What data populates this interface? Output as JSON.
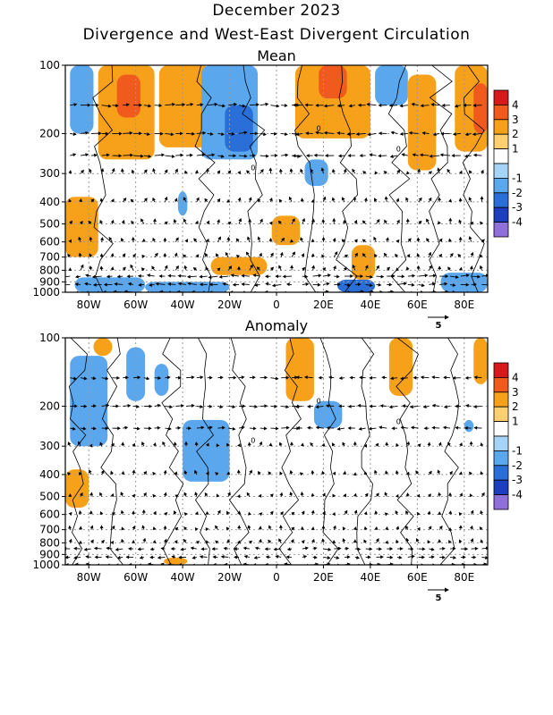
{
  "figure": {
    "title": "December 2023",
    "subtitle": "Divergence and West-East Divergent Circulation"
  },
  "chart_data": [
    {
      "type": "heatmap",
      "title": "Mean",
      "x_ticks": [
        "80W",
        "60W",
        "40W",
        "20W",
        "0",
        "20E",
        "40E",
        "60E",
        "80E"
      ],
      "x_tick_values": [
        -80,
        -60,
        -40,
        -20,
        0,
        20,
        40,
        60,
        80
      ],
      "xlim": [
        -90,
        90
      ],
      "y_ticks": [
        "100",
        "200",
        "300",
        "400",
        "500",
        "600",
        "700",
        "800",
        "900",
        "1000"
      ],
      "y_tick_values": [
        100,
        200,
        300,
        400,
        500,
        600,
        700,
        800,
        900,
        1000
      ],
      "ylim": [
        1000,
        100
      ],
      "y_scale": "log-pressure",
      "grid": true,
      "contour_label": "0",
      "vector_reference": "5",
      "colorbar": {
        "labels": [
          "4",
          "3",
          "2",
          "1",
          "-1",
          "-2",
          "-3",
          "-4"
        ],
        "colors": [
          "#d7191c",
          "#f15a1d",
          "#f7a11a",
          "#fcd070",
          "#ffffff",
          "#a6d4f7",
          "#5aa7ee",
          "#2a6fd8",
          "#1c3fbf",
          "#8f6fd9"
        ]
      },
      "anomaly_regions": [
        {
          "x0": -88,
          "x1": -78,
          "p0": 100,
          "p1": 200,
          "value": -2
        },
        {
          "x0": -76,
          "x1": -52,
          "p0": 100,
          "p1": 260,
          "value": 2
        },
        {
          "x0": -68,
          "x1": -58,
          "p0": 110,
          "p1": 170,
          "value": 3
        },
        {
          "x0": -50,
          "x1": -28,
          "p0": 100,
          "p1": 230,
          "value": 2
        },
        {
          "x0": -32,
          "x1": -8,
          "p0": 100,
          "p1": 260,
          "value": -2
        },
        {
          "x0": -22,
          "x1": -10,
          "p0": 150,
          "p1": 240,
          "value": -3
        },
        {
          "x0": 8,
          "x1": 40,
          "p0": 100,
          "p1": 210,
          "value": 2
        },
        {
          "x0": 18,
          "x1": 30,
          "p0": 100,
          "p1": 140,
          "value": 3
        },
        {
          "x0": 42,
          "x1": 56,
          "p0": 100,
          "p1": 150,
          "value": -2
        },
        {
          "x0": 56,
          "x1": 68,
          "p0": 110,
          "p1": 290,
          "value": 2
        },
        {
          "x0": 76,
          "x1": 90,
          "p0": 100,
          "p1": 240,
          "value": 2
        },
        {
          "x0": 84,
          "x1": 90,
          "p0": 120,
          "p1": 200,
          "value": 3
        },
        {
          "x0": 12,
          "x1": 22,
          "p0": 260,
          "p1": 340,
          "value": -2
        },
        {
          "x0": -42,
          "x1": -38,
          "p0": 360,
          "p1": 460,
          "value": -2
        },
        {
          "x0": -90,
          "x1": -76,
          "p0": 380,
          "p1": 700,
          "value": 2
        },
        {
          "x0": -2,
          "x1": 10,
          "p0": 460,
          "p1": 620,
          "value": 2
        },
        {
          "x0": 32,
          "x1": 42,
          "p0": 620,
          "p1": 880,
          "value": 2
        },
        {
          "x0": -28,
          "x1": -4,
          "p0": 700,
          "p1": 840,
          "value": 2
        },
        {
          "x0": -86,
          "x1": -56,
          "p0": 860,
          "p1": 1000,
          "value": -2
        },
        {
          "x0": -56,
          "x1": -20,
          "p0": 900,
          "p1": 1000,
          "value": -2
        },
        {
          "x0": 26,
          "x1": 42,
          "p0": 880,
          "p1": 1000,
          "value": -3
        },
        {
          "x0": 70,
          "x1": 90,
          "p0": 820,
          "p1": 1000,
          "value": -2
        }
      ]
    },
    {
      "type": "heatmap",
      "title": "Anomaly",
      "x_ticks": [
        "80W",
        "60W",
        "40W",
        "20W",
        "0",
        "20E",
        "40E",
        "60E",
        "80E"
      ],
      "x_tick_values": [
        -80,
        -60,
        -40,
        -20,
        0,
        20,
        40,
        60,
        80
      ],
      "xlim": [
        -90,
        90
      ],
      "y_ticks": [
        "100",
        "200",
        "300",
        "400",
        "500",
        "600",
        "700",
        "800",
        "900",
        "1000"
      ],
      "y_tick_values": [
        100,
        200,
        300,
        400,
        500,
        600,
        700,
        800,
        900,
        1000
      ],
      "ylim": [
        1000,
        100
      ],
      "y_scale": "log-pressure",
      "grid": true,
      "contour_label": "0",
      "vector_reference": "5",
      "colorbar": {
        "labels": [
          "4",
          "3",
          "2",
          "1",
          "-1",
          "-2",
          "-3",
          "-4"
        ],
        "colors": [
          "#d7191c",
          "#f15a1d",
          "#f7a11a",
          "#fcd070",
          "#ffffff",
          "#a6d4f7",
          "#5aa7ee",
          "#2a6fd8",
          "#1c3fbf",
          "#8f6fd9"
        ]
      },
      "anomaly_regions": [
        {
          "x0": -78,
          "x1": -70,
          "p0": 100,
          "p1": 120,
          "value": 2
        },
        {
          "x0": -88,
          "x1": -72,
          "p0": 120,
          "p1": 300,
          "value": -2
        },
        {
          "x0": -64,
          "x1": -56,
          "p0": 110,
          "p1": 190,
          "value": -2
        },
        {
          "x0": -52,
          "x1": -46,
          "p0": 130,
          "p1": 180,
          "value": -2
        },
        {
          "x0": 4,
          "x1": 16,
          "p0": 100,
          "p1": 190,
          "value": 2
        },
        {
          "x0": 48,
          "x1": 58,
          "p0": 100,
          "p1": 180,
          "value": 2
        },
        {
          "x0": 84,
          "x1": 90,
          "p0": 100,
          "p1": 160,
          "value": 2
        },
        {
          "x0": -40,
          "x1": -20,
          "p0": 230,
          "p1": 430,
          "value": -2
        },
        {
          "x0": 16,
          "x1": 28,
          "p0": 190,
          "p1": 250,
          "value": -2
        },
        {
          "x0": -90,
          "x1": -80,
          "p0": 380,
          "p1": 560,
          "value": 2
        },
        {
          "x0": -48,
          "x1": -38,
          "p0": 930,
          "p1": 1000,
          "value": 2
        },
        {
          "x0": 80,
          "x1": 84,
          "p0": 230,
          "p1": 260,
          "value": -2
        }
      ]
    }
  ]
}
